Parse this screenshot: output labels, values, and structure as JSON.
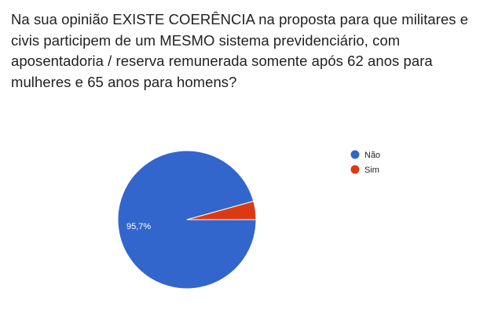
{
  "question": {
    "text": "Na sua opinião EXISTE COERÊNCIA na proposta para que militares e civis participem de um MESMO sistema previdenciário, com aposentadoria / reserva remunerada somente após 62 anos para mulheres e 65 anos para homens?"
  },
  "chart_data": {
    "type": "pie",
    "labels": [
      "Não",
      "Sim"
    ],
    "values": [
      95.7,
      4.3
    ],
    "colors": [
      "#3366CC",
      "#DC3912"
    ],
    "data_labels": [
      "95,7%",
      ""
    ],
    "legend_position": "right",
    "title": "",
    "xlabel": "",
    "ylabel": ""
  }
}
